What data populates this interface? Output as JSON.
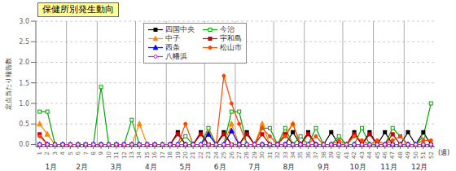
{
  "chart_data": {
    "type": "line",
    "title": "保健所別発生動向",
    "ylabel": "定点当たり報告数",
    "xlabel": "(週)",
    "x": [
      1,
      2,
      3,
      4,
      5,
      6,
      7,
      8,
      9,
      10,
      11,
      12,
      13,
      14,
      15,
      16,
      17,
      18,
      19,
      20,
      21,
      22,
      23,
      24,
      25,
      26,
      27,
      28,
      29,
      30,
      31,
      32,
      33,
      34,
      35,
      36,
      37,
      38,
      39,
      40,
      41,
      42,
      43,
      44,
      45,
      46,
      47,
      48,
      49,
      50,
      51,
      52
    ],
    "xlim": [
      0.5,
      52.5
    ],
    "xticks": [
      1,
      2,
      3,
      4,
      5,
      6,
      7,
      8,
      9,
      10,
      11,
      12,
      13,
      14,
      15,
      16,
      17,
      18,
      19,
      20,
      21,
      22,
      23,
      24,
      25,
      26,
      27,
      28,
      29,
      30,
      31,
      32,
      33,
      34,
      35,
      36,
      37,
      38,
      39,
      40,
      41,
      42,
      43,
      44,
      45,
      46,
      47,
      48,
      49,
      50,
      51,
      52
    ],
    "ylim": [
      -0.05,
      3.0
    ],
    "yticks": [
      {
        "value": 0,
        "label": "0.0"
      },
      0.5,
      {
        "value": 1.0,
        "label": "1.0"
      },
      1.5,
      {
        "value": 2.0,
        "label": "2.0"
      },
      2.5,
      {
        "value": 3.0,
        "label": "3.0"
      }
    ],
    "grid": true,
    "legend": "upper left",
    "annotations": [
      {
        "text": "1月",
        "x_range": [
          0.5,
          4.5
        ]
      },
      {
        "text": "2月",
        "x_range": [
          4.5,
          8.5
        ]
      },
      {
        "text": "3月",
        "x_range": [
          8.5,
          13.5
        ]
      },
      {
        "text": "4月",
        "x_range": [
          13.5,
          17.5
        ]
      },
      {
        "text": "5月",
        "x_range": [
          17.5,
          22.5
        ]
      },
      {
        "text": "6月",
        "x_range": [
          22.5,
          26.5
        ]
      },
      {
        "text": "7月",
        "x_range": [
          26.5,
          31.5
        ]
      },
      {
        "text": "8月",
        "x_range": [
          31.5,
          35.5
        ]
      },
      {
        "text": "9月",
        "x_range": [
          35.5,
          40.5
        ]
      },
      {
        "text": "10月",
        "x_range": [
          40.5,
          44.5
        ]
      },
      {
        "text": "11月",
        "x_range": [
          44.5,
          48.5
        ]
      },
      {
        "text": "12月",
        "x_range": [
          48.5,
          52.5
        ]
      }
    ],
    "series": [
      {
        "name": "四国中央",
        "color": "#000000",
        "marker": "square",
        "values": [
          0,
          0,
          0,
          0,
          0,
          0,
          0,
          0,
          0,
          0,
          0,
          0,
          0,
          0,
          0,
          0,
          0,
          0,
          0.3,
          0,
          0,
          0.3,
          0,
          0,
          0.3,
          0,
          0,
          0.3,
          0,
          0,
          0,
          0,
          0,
          0.3,
          0,
          0.3,
          0,
          0,
          0.3,
          0,
          0,
          0.3,
          0,
          0.3,
          0,
          0.3,
          0,
          0,
          0.3,
          0,
          0.3,
          0
        ]
      },
      {
        "name": "今治",
        "color": "#00aa00",
        "marker": "open_square",
        "values": [
          0.8,
          0.8,
          0,
          0,
          0,
          0,
          0,
          0,
          1.4,
          0,
          0,
          0,
          0.6,
          0,
          0,
          0,
          0,
          0,
          0,
          0.2,
          0,
          0,
          0.4,
          0,
          0,
          0.8,
          0.8,
          0,
          0,
          0.4,
          0.4,
          0,
          0.4,
          0,
          0.2,
          0,
          0.4,
          0,
          0,
          0.2,
          0,
          0,
          0.4,
          0,
          0,
          0,
          0.4,
          0.2,
          0,
          0,
          0.2,
          1.0
        ]
      },
      {
        "name": "中子",
        "color": "#ff8800",
        "marker": "triangle",
        "values": [
          0.5,
          0.25,
          0,
          0,
          0,
          0,
          0,
          0,
          0,
          0,
          0,
          0,
          0,
          0.5,
          0,
          0,
          0,
          0,
          0,
          0,
          0,
          0,
          0.3,
          0,
          0,
          0.5,
          0,
          0,
          0,
          0.5,
          0,
          0,
          0.25,
          0.5,
          0,
          0,
          0,
          0,
          0,
          0,
          0,
          0,
          0,
          0,
          0,
          0,
          0,
          0,
          0,
          0,
          0,
          0
        ]
      },
      {
        "name": "宇和島",
        "color": "#cc0000",
        "marker": "square",
        "values": [
          0.25,
          0,
          0,
          0,
          0,
          0,
          0,
          0,
          0,
          0,
          0,
          0,
          0,
          0,
          0,
          0,
          0,
          0,
          0.25,
          0,
          0,
          0.25,
          0,
          0,
          0.25,
          0,
          0,
          0.25,
          0,
          0.25,
          0,
          0,
          0.25,
          0,
          0,
          0.25,
          0,
          0,
          0,
          0,
          0,
          0.25,
          0,
          0.25,
          0,
          0,
          0.25,
          0,
          0,
          0,
          0,
          0
        ]
      },
      {
        "name": "西条",
        "color": "#0000ff",
        "marker": "triangle",
        "values": [
          0,
          0,
          0,
          0,
          0,
          0,
          0,
          0,
          0,
          0,
          0,
          0,
          0,
          0,
          0,
          0,
          0,
          0,
          0,
          0,
          0,
          0,
          0.25,
          0,
          0,
          0.33,
          0,
          0,
          0,
          0,
          0,
          0,
          0,
          0,
          0,
          0,
          0,
          0,
          0,
          0,
          0,
          0,
          0,
          0,
          0,
          0,
          0,
          0,
          0,
          0,
          0,
          0
        ]
      },
      {
        "name": "松山市",
        "color": "#ff4400",
        "marker": "circle",
        "values": [
          0.2,
          0,
          0,
          0,
          0,
          0,
          0,
          0,
          0,
          0,
          0,
          0,
          0,
          0,
          0,
          0,
          0,
          0,
          0,
          0.5,
          0,
          0,
          0,
          0,
          1.67,
          1.0,
          0.5,
          0,
          0,
          0.4,
          0.2,
          0,
          0.2,
          0.5,
          0,
          0,
          0.2,
          0,
          0,
          0.1,
          0,
          0.2,
          0.1,
          0,
          0.1,
          0,
          0.1,
          0.2,
          0,
          0,
          0.1,
          0.1
        ]
      },
      {
        "name": "八幡浜",
        "color": "#ff00ff",
        "marker": "open_circle",
        "values": [
          0,
          0,
          0,
          0,
          0,
          0,
          0,
          0,
          0,
          0,
          0,
          0,
          0,
          0,
          0,
          0,
          0,
          0,
          0,
          0,
          0,
          0,
          0,
          0,
          0,
          0,
          0,
          0,
          0,
          0,
          0,
          0,
          0,
          0,
          0,
          0,
          0,
          0,
          0,
          0,
          0,
          0,
          0,
          0,
          0,
          0,
          0,
          0,
          0,
          0,
          0,
          0
        ]
      }
    ]
  }
}
